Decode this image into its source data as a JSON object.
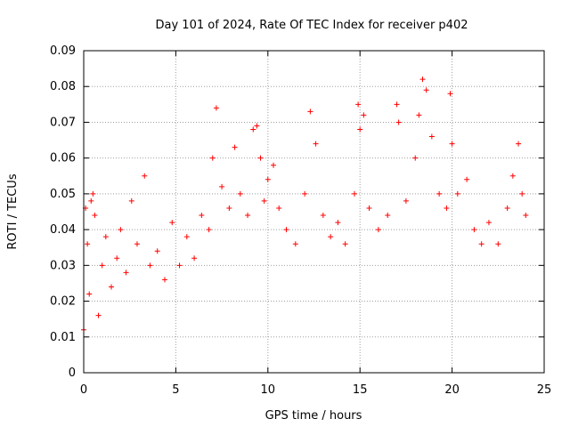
{
  "chart_data": {
    "type": "scatter",
    "title": "Day 101 of 2024, Rate Of TEC Index for receiver p402",
    "xlabel": "GPS time / hours",
    "ylabel": "ROTI / TECUs",
    "xlim": [
      0,
      25
    ],
    "ylim": [
      0,
      0.09
    ],
    "x_ticks": [
      0,
      5,
      10,
      15,
      20,
      25
    ],
    "x_tick_labels": [
      "0",
      "5",
      "10",
      "15",
      "20",
      "25"
    ],
    "y_ticks": [
      0,
      0.01,
      0.02,
      0.03,
      0.04,
      0.05,
      0.06,
      0.07,
      0.08,
      0.09
    ],
    "y_tick_labels": [
      "0",
      "0.01",
      "0.02",
      "0.03",
      "0.04",
      "0.05",
      "0.06",
      "0.07",
      "0.08",
      "0.09"
    ],
    "grid": true,
    "marker": "+",
    "color": "#ff0000",
    "series": [
      {
        "values": [
          [
            0.0,
            0.012
          ],
          [
            0.1,
            0.046
          ],
          [
            0.2,
            0.036
          ],
          [
            0.3,
            0.022
          ],
          [
            0.4,
            0.048
          ],
          [
            0.5,
            0.05
          ],
          [
            0.6,
            0.044
          ],
          [
            0.8,
            0.016
          ],
          [
            1.0,
            0.03
          ],
          [
            1.2,
            0.038
          ],
          [
            1.5,
            0.024
          ],
          [
            1.8,
            0.032
          ],
          [
            2.0,
            0.04
          ],
          [
            2.3,
            0.028
          ],
          [
            2.6,
            0.048
          ],
          [
            2.9,
            0.036
          ],
          [
            3.3,
            0.055
          ],
          [
            3.6,
            0.03
          ],
          [
            4.0,
            0.034
          ],
          [
            4.4,
            0.026
          ],
          [
            4.8,
            0.042
          ],
          [
            5.2,
            0.03
          ],
          [
            5.6,
            0.038
          ],
          [
            6.0,
            0.032
          ],
          [
            6.4,
            0.044
          ],
          [
            6.8,
            0.04
          ],
          [
            7.0,
            0.06
          ],
          [
            7.2,
            0.074
          ],
          [
            7.5,
            0.052
          ],
          [
            7.9,
            0.046
          ],
          [
            8.2,
            0.063
          ],
          [
            8.5,
            0.05
          ],
          [
            8.9,
            0.044
          ],
          [
            9.2,
            0.068
          ],
          [
            9.4,
            0.069
          ],
          [
            9.6,
            0.06
          ],
          [
            9.8,
            0.048
          ],
          [
            10.0,
            0.054
          ],
          [
            10.3,
            0.058
          ],
          [
            10.6,
            0.046
          ],
          [
            11.0,
            0.04
          ],
          [
            11.5,
            0.036
          ],
          [
            12.0,
            0.05
          ],
          [
            12.3,
            0.073
          ],
          [
            12.6,
            0.064
          ],
          [
            13.0,
            0.044
          ],
          [
            13.4,
            0.038
          ],
          [
            13.8,
            0.042
          ],
          [
            14.2,
            0.036
          ],
          [
            14.7,
            0.05
          ],
          [
            14.9,
            0.075
          ],
          [
            15.0,
            0.068
          ],
          [
            15.2,
            0.072
          ],
          [
            15.5,
            0.046
          ],
          [
            16.0,
            0.04
          ],
          [
            16.5,
            0.044
          ],
          [
            17.0,
            0.075
          ],
          [
            17.1,
            0.07
          ],
          [
            17.5,
            0.048
          ],
          [
            18.0,
            0.06
          ],
          [
            18.2,
            0.072
          ],
          [
            18.4,
            0.082
          ],
          [
            18.6,
            0.079
          ],
          [
            18.9,
            0.066
          ],
          [
            19.3,
            0.05
          ],
          [
            19.7,
            0.046
          ],
          [
            19.9,
            0.078
          ],
          [
            20.0,
            0.064
          ],
          [
            20.3,
            0.05
          ],
          [
            20.8,
            0.054
          ],
          [
            21.2,
            0.04
          ],
          [
            21.6,
            0.036
          ],
          [
            22.0,
            0.042
          ],
          [
            22.5,
            0.036
          ],
          [
            23.0,
            0.046
          ],
          [
            23.3,
            0.055
          ],
          [
            23.6,
            0.064
          ],
          [
            23.8,
            0.05
          ],
          [
            24.0,
            0.044
          ]
        ]
      }
    ]
  }
}
